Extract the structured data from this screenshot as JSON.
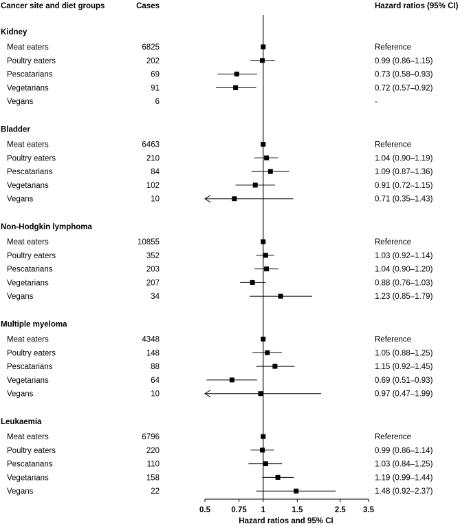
{
  "chart_data": {
    "type": "forest",
    "headers": {
      "col1": "Cancer site and diet groups",
      "col2": "Cases",
      "col3": "Hazard ratios (95% CI)"
    },
    "xlabel": "Hazard ratios and 95% CI",
    "x_scale": "log",
    "xlim": [
      0.5,
      3.5
    ],
    "xticks": [
      "0.5",
      "0.75",
      "1",
      "1.5",
      "2.5",
      "3.5"
    ],
    "xtick_values": [
      0.5,
      0.75,
      1,
      1.5,
      2.5,
      3.5
    ],
    "reference_line": 1,
    "groups": [
      {
        "name": "Kidney",
        "rows": [
          {
            "label": "Meat eaters",
            "cases": "6825",
            "hr": 1,
            "lo": null,
            "hi": null,
            "text": "Reference"
          },
          {
            "label": "Poultry eaters",
            "cases": "202",
            "hr": 0.99,
            "lo": 0.86,
            "hi": 1.15,
            "text": "0.99 (0.86–1.15)"
          },
          {
            "label": "Pescatarians",
            "cases": "69",
            "hr": 0.73,
            "lo": 0.58,
            "hi": 0.93,
            "text": "0.73 (0.58–0.93)"
          },
          {
            "label": "Vegetarians",
            "cases": "91",
            "hr": 0.72,
            "lo": 0.57,
            "hi": 0.92,
            "text": "0.72 (0.57–0.92)"
          },
          {
            "label": "Vegans",
            "cases": "6",
            "hr": null,
            "lo": null,
            "hi": null,
            "text": "-"
          }
        ]
      },
      {
        "name": "Bladder",
        "rows": [
          {
            "label": "Meat eaters",
            "cases": "6463",
            "hr": 1,
            "lo": null,
            "hi": null,
            "text": "Reference"
          },
          {
            "label": "Poultry eaters",
            "cases": "210",
            "hr": 1.04,
            "lo": 0.9,
            "hi": 1.19,
            "text": "1.04 (0.90–1.19)"
          },
          {
            "label": "Pescatarians",
            "cases": "84",
            "hr": 1.09,
            "lo": 0.87,
            "hi": 1.36,
            "text": "1.09 (0.87–1.36)"
          },
          {
            "label": "Vegetarians",
            "cases": "102",
            "hr": 0.91,
            "lo": 0.72,
            "hi": 1.15,
            "text": "0.91 (0.72–1.15)"
          },
          {
            "label": "Vegans",
            "cases": "10",
            "hr": 0.71,
            "lo": 0.35,
            "hi": 1.43,
            "text": "0.71 (0.35–1.43)"
          }
        ]
      },
      {
        "name": "Non-Hodgkin lymphoma",
        "rows": [
          {
            "label": "Meat eaters",
            "cases": "10855",
            "hr": 1,
            "lo": null,
            "hi": null,
            "text": "Reference"
          },
          {
            "label": "Poultry eaters",
            "cases": "352",
            "hr": 1.03,
            "lo": 0.92,
            "hi": 1.14,
            "text": "1.03 (0.92–1.14)"
          },
          {
            "label": "Pescatarians",
            "cases": "203",
            "hr": 1.04,
            "lo": 0.9,
            "hi": 1.2,
            "text": "1.04 (0.90–1.20)"
          },
          {
            "label": "Vegetarians",
            "cases": "207",
            "hr": 0.88,
            "lo": 0.76,
            "hi": 1.03,
            "text": "0.88 (0.76–1.03)"
          },
          {
            "label": "Vegans",
            "cases": "34",
            "hr": 1.23,
            "lo": 0.85,
            "hi": 1.79,
            "text": "1.23 (0.85–1.79)"
          }
        ]
      },
      {
        "name": "Multiple myeloma",
        "rows": [
          {
            "label": "Meat eaters",
            "cases": "4348",
            "hr": 1,
            "lo": null,
            "hi": null,
            "text": "Reference"
          },
          {
            "label": "Poultry eaters",
            "cases": "148",
            "hr": 1.05,
            "lo": 0.88,
            "hi": 1.25,
            "text": "1.05 (0.88–1.25)"
          },
          {
            "label": "Pescatarians",
            "cases": "88",
            "hr": 1.15,
            "lo": 0.92,
            "hi": 1.45,
            "text": "1.15 (0.92–1.45)"
          },
          {
            "label": "Vegetarians",
            "cases": "64",
            "hr": 0.69,
            "lo": 0.51,
            "hi": 0.93,
            "text": "0.69 (0.51–0.93)"
          },
          {
            "label": "Vegans",
            "cases": "10",
            "hr": 0.97,
            "lo": 0.47,
            "hi": 1.99,
            "text": "0.97 (0.47–1.99)"
          }
        ]
      },
      {
        "name": "Leukaemia",
        "rows": [
          {
            "label": "Meat eaters",
            "cases": "6796",
            "hr": 1,
            "lo": null,
            "hi": null,
            "text": "Reference"
          },
          {
            "label": "Poultry eaters",
            "cases": "220",
            "hr": 0.99,
            "lo": 0.86,
            "hi": 1.14,
            "text": "0.99 (0.86–1.14)"
          },
          {
            "label": "Pescatarians",
            "cases": "110",
            "hr": 1.03,
            "lo": 0.84,
            "hi": 1.25,
            "text": "1.03 (0.84–1.25)"
          },
          {
            "label": "Vegetarians",
            "cases": "158",
            "hr": 1.19,
            "lo": 0.99,
            "hi": 1.44,
            "text": "1.19 (0.99–1.44)"
          },
          {
            "label": "Vegans",
            "cases": "22",
            "hr": 1.48,
            "lo": 0.92,
            "hi": 2.37,
            "text": "1.48 (0.92–2.37)"
          }
        ]
      }
    ]
  }
}
